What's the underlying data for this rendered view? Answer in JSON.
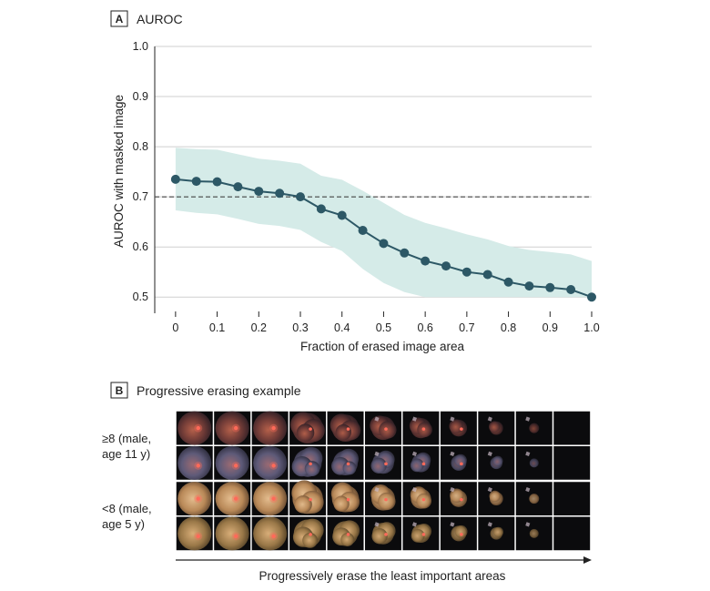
{
  "panel_a": {
    "letter": "A",
    "title": "AUROC"
  },
  "panel_b": {
    "letter": "B",
    "title": "Progressive erasing example",
    "rows": [
      {
        "label_line1": "≥8 (male,",
        "label_line2": "age 11 y)"
      },
      {
        "label_line1": "<8 (male,",
        "label_line2": "age 5 y)"
      }
    ],
    "caption": "Progressively erase the least important areas"
  },
  "chart_data": {
    "type": "line",
    "title": "AUROC",
    "xlabel": "Fraction of erased image area",
    "ylabel": "AUROC with masked image",
    "xlim": [
      -0.05,
      1.0
    ],
    "ylim": [
      0.475,
      1.0
    ],
    "xticks": [
      "0",
      "0.1",
      "0.2",
      "0.3",
      "0.4",
      "0.5",
      "0.6",
      "0.7",
      "0.8",
      "0.9",
      "1.0"
    ],
    "yticks": [
      "0.5",
      "0.6",
      "0.7",
      "0.8",
      "0.9",
      "1.0"
    ],
    "reference_line": 0.7,
    "grid": "horizontal",
    "colors": {
      "line": "#2d5866",
      "band": "#d5ebe8",
      "reference": "#444444"
    },
    "series": [
      {
        "x": [
          0,
          0.05,
          0.1,
          0.15,
          0.2,
          0.25,
          0.3,
          0.35,
          0.4,
          0.45,
          0.5,
          0.55,
          0.6,
          0.65,
          0.7,
          0.75,
          0.8,
          0.85,
          0.9,
          0.95,
          1.0
        ],
        "values": [
          0.735,
          0.731,
          0.73,
          0.72,
          0.711,
          0.707,
          0.7,
          0.676,
          0.663,
          0.633,
          0.607,
          0.588,
          0.572,
          0.562,
          0.55,
          0.545,
          0.53,
          0.522,
          0.519,
          0.515,
          0.5
        ],
        "upper": [
          0.798,
          0.795,
          0.794,
          0.785,
          0.776,
          0.772,
          0.766,
          0.742,
          0.734,
          0.712,
          0.688,
          0.664,
          0.648,
          0.637,
          0.625,
          0.615,
          0.602,
          0.594,
          0.59,
          0.585,
          0.572
        ],
        "lower": [
          0.673,
          0.668,
          0.665,
          0.656,
          0.646,
          0.642,
          0.634,
          0.61,
          0.592,
          0.556,
          0.528,
          0.51,
          0.5,
          0.5,
          0.5,
          0.5,
          0.5,
          0.5,
          0.5,
          0.5,
          0.5
        ]
      }
    ]
  }
}
